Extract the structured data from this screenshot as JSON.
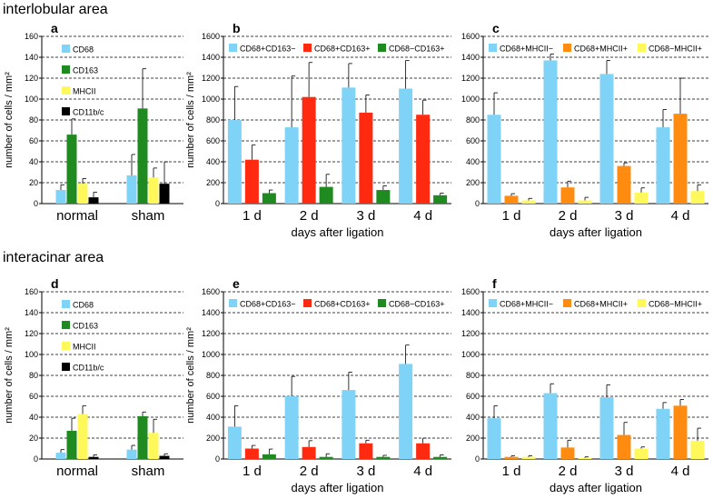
{
  "sections": [
    {
      "title": "interlobular area"
    },
    {
      "title": "interacinar area"
    }
  ],
  "colors": {
    "CD68": "#7fd3f7",
    "CD163": "#1f8a1f",
    "MHCII": "#fff85a",
    "CD11b/c": "#000000",
    "CD68+CD163-": "#7fd3f7",
    "CD68+CD163+": "#ff2a10",
    "CD68-CD163+": "#1f8a1f",
    "CD68+MHCII-": "#7fd3f7",
    "CD68+MHCII+": "#ff8c10",
    "CD68-MHCII+": "#fff85a"
  },
  "chart_data": [
    {
      "panel": "a",
      "type": "bar",
      "ylabel": "number of cells / mm²",
      "xlabel": "",
      "ylim": [
        0,
        160
      ],
      "yticks": [
        0,
        20,
        40,
        60,
        80,
        100,
        120,
        140,
        160
      ],
      "grid": true,
      "legend_placement": "top-left-vertical",
      "categories": [
        "normal",
        "sham"
      ],
      "series": [
        {
          "name": "CD68",
          "values": [
            13,
            27
          ],
          "errors": [
            5,
            20
          ]
        },
        {
          "name": "CD163",
          "values": [
            66,
            91
          ],
          "errors": [
            15,
            38
          ]
        },
        {
          "name": "MHCII",
          "values": [
            19,
            25
          ],
          "errors": [
            5,
            9
          ]
        },
        {
          "name": "CD11b/c",
          "values": [
            6,
            19
          ],
          "errors": [
            5,
            21
          ]
        }
      ]
    },
    {
      "panel": "b",
      "type": "bar",
      "ylabel": "number of cells / mm²",
      "xlabel": "days after ligation",
      "ylim": [
        0,
        1600
      ],
      "yticks": [
        0,
        200,
        400,
        600,
        800,
        1000,
        1200,
        1400,
        1600
      ],
      "grid": true,
      "legend_placement": "top",
      "categories": [
        "1 d",
        "2 d",
        "3 d",
        "4 d"
      ],
      "series": [
        {
          "name": "CD68+CD163−",
          "values": [
            800,
            730,
            1110,
            1100
          ],
          "errors": [
            320,
            490,
            230,
            270
          ]
        },
        {
          "name": "CD68+CD163+",
          "values": [
            420,
            1020,
            870,
            850
          ],
          "errors": [
            140,
            330,
            170,
            140
          ]
        },
        {
          "name": "CD68−CD163+",
          "values": [
            100,
            160,
            130,
            80
          ],
          "errors": [
            30,
            120,
            40,
            20
          ]
        }
      ]
    },
    {
      "panel": "c",
      "type": "bar",
      "ylabel": "",
      "xlabel": "days after ligation",
      "ylim": [
        0,
        1600
      ],
      "yticks": [
        0,
        200,
        400,
        600,
        800,
        1000,
        1200,
        1400,
        1600
      ],
      "grid": true,
      "legend_placement": "top",
      "categories": [
        "1 d",
        "2 d",
        "3 d",
        "4 d"
      ],
      "series": [
        {
          "name": "CD68+MHCII−",
          "values": [
            850,
            1370,
            1240,
            730
          ],
          "errors": [
            210,
            60,
            130,
            170
          ]
        },
        {
          "name": "CD68+MHCII+",
          "values": [
            75,
            155,
            360,
            860
          ],
          "errors": [
            20,
            60,
            30,
            340
          ]
        },
        {
          "name": "CD68−MHCII+",
          "values": [
            30,
            30,
            105,
            120
          ],
          "errors": [
            20,
            30,
            45,
            60
          ]
        }
      ]
    },
    {
      "panel": "d",
      "type": "bar",
      "ylabel": "number of cells / mm²",
      "xlabel": "",
      "ylim": [
        0,
        160
      ],
      "yticks": [
        0,
        20,
        40,
        60,
        80,
        100,
        120,
        140,
        160
      ],
      "grid": true,
      "legend_placement": "top-left-vertical",
      "categories": [
        "normal",
        "sham"
      ],
      "series": [
        {
          "name": "CD68",
          "values": [
            6,
            9
          ],
          "errors": [
            3,
            4
          ]
        },
        {
          "name": "CD163",
          "values": [
            27,
            41
          ],
          "errors": [
            12,
            4
          ]
        },
        {
          "name": "MHCII",
          "values": [
            43,
            25
          ],
          "errors": [
            8,
            13
          ]
        },
        {
          "name": "CD11b/c",
          "values": [
            2,
            3
          ],
          "errors": [
            2,
            2
          ]
        }
      ]
    },
    {
      "panel": "e",
      "type": "bar",
      "ylabel": "number of cells / mm²",
      "xlabel": "days after ligation",
      "ylim": [
        0,
        1600
      ],
      "yticks": [
        0,
        200,
        400,
        600,
        800,
        1000,
        1200,
        1400,
        1600
      ],
      "grid": true,
      "legend_placement": "top",
      "categories": [
        "1 d",
        "2 d",
        "3 d",
        "4 d"
      ],
      "series": [
        {
          "name": "CD68+CD163−",
          "values": [
            310,
            600,
            660,
            910
          ],
          "errors": [
            200,
            190,
            170,
            180
          ]
        },
        {
          "name": "CD68+CD163+",
          "values": [
            100,
            115,
            150,
            150
          ],
          "errors": [
            30,
            60,
            30,
            50
          ]
        },
        {
          "name": "CD68−CD163+",
          "values": [
            45,
            20,
            20,
            20
          ],
          "errors": [
            50,
            30,
            15,
            20
          ]
        }
      ]
    },
    {
      "panel": "f",
      "type": "bar",
      "ylabel": "",
      "xlabel": "days after ligation",
      "ylim": [
        0,
        1600
      ],
      "yticks": [
        0,
        200,
        400,
        600,
        800,
        1000,
        1200,
        1400,
        1600
      ],
      "grid": true,
      "legend_placement": "top",
      "categories": [
        "1 d",
        "2 d",
        "3 d",
        "4 d"
      ],
      "series": [
        {
          "name": "CD68+MHCII−",
          "values": [
            390,
            630,
            590,
            480
          ],
          "errors": [
            120,
            90,
            120,
            60
          ]
        },
        {
          "name": "CD68+MHCII+",
          "values": [
            20,
            110,
            230,
            510
          ],
          "errors": [
            10,
            70,
            120,
            60
          ]
        },
        {
          "name": "CD68−MHCII+",
          "values": [
            20,
            10,
            100,
            175
          ],
          "errors": [
            10,
            10,
            15,
            120
          ]
        }
      ]
    }
  ]
}
